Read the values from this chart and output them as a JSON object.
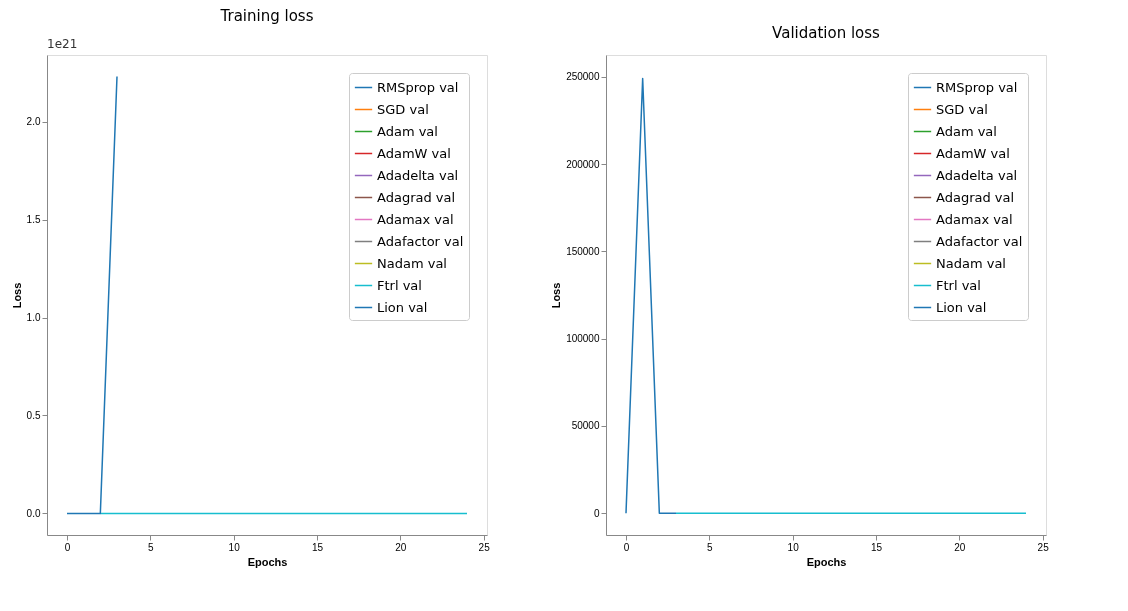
{
  "chart_data": [
    {
      "type": "line",
      "title": "Training loss",
      "xlabel": "Epochs",
      "ylabel": "Loss",
      "annotations": [
        "1e21"
      ],
      "x": [
        0,
        1,
        2,
        3,
        4,
        5,
        6,
        7,
        8,
        9,
        10,
        11,
        12,
        13,
        14,
        15,
        16,
        17,
        18,
        19,
        20,
        21,
        22,
        23,
        24
      ],
      "xlim": [
        -1.2,
        25.2
      ],
      "xticks": [
        0,
        5,
        10,
        15,
        20,
        25
      ],
      "ylim": [
        -0.11,
        2.34
      ],
      "yticks": [
        {
          "value": 0,
          "label": "0.0"
        },
        {
          "value": 0.5,
          "label": "0.5"
        },
        {
          "value": 1,
          "label": "1.0"
        },
        {
          "value": 1.5,
          "label": "1.5"
        },
        {
          "value": 2,
          "label": "2.0"
        }
      ],
      "legend": "top right",
      "grid": false,
      "series": [
        {
          "name": "RMSprop val",
          "color": "#1f77b4",
          "values": [
            0,
            0,
            0,
            2.23,
            null,
            null,
            null,
            null,
            null,
            null,
            null,
            null,
            null,
            null,
            null,
            null,
            null,
            null,
            null,
            null,
            null,
            null,
            null,
            null,
            null
          ]
        },
        {
          "name": "SGD val",
          "color": "#ff7f0e",
          "values": [
            null,
            null,
            null,
            null,
            null,
            null,
            null,
            null,
            null,
            null,
            null,
            null,
            null,
            null,
            null,
            null,
            null,
            null,
            null,
            null,
            null,
            null,
            null,
            null,
            null
          ]
        },
        {
          "name": "Adam val",
          "color": "#2ca02c",
          "values": [
            null,
            null,
            null,
            null,
            null,
            null,
            null,
            null,
            null,
            null,
            null,
            null,
            null,
            null,
            null,
            null,
            null,
            null,
            null,
            null,
            null,
            null,
            null,
            null,
            null
          ]
        },
        {
          "name": "AdamW val",
          "color": "#d62728",
          "values": [
            null,
            null,
            null,
            null,
            null,
            null,
            null,
            null,
            null,
            null,
            null,
            null,
            null,
            null,
            null,
            null,
            null,
            null,
            null,
            null,
            null,
            null,
            null,
            null,
            null
          ]
        },
        {
          "name": "Adadelta val",
          "color": "#9467bd",
          "values": [
            null,
            null,
            null,
            null,
            null,
            null,
            null,
            null,
            null,
            null,
            null,
            null,
            null,
            null,
            null,
            null,
            null,
            null,
            null,
            null,
            null,
            null,
            null,
            null,
            null
          ]
        },
        {
          "name": "Adagrad val",
          "color": "#8c564b",
          "values": [
            null,
            null,
            null,
            null,
            null,
            null,
            null,
            null,
            null,
            null,
            null,
            null,
            null,
            null,
            null,
            null,
            null,
            null,
            null,
            null,
            null,
            null,
            null,
            null,
            null
          ]
        },
        {
          "name": "Adamax val",
          "color": "#e377c2",
          "values": [
            null,
            null,
            null,
            null,
            null,
            null,
            null,
            null,
            null,
            null,
            null,
            null,
            null,
            null,
            null,
            null,
            null,
            null,
            null,
            null,
            null,
            null,
            null,
            null,
            null
          ]
        },
        {
          "name": "Adafactor val",
          "color": "#7f7f7f",
          "values": [
            null,
            null,
            null,
            null,
            null,
            null,
            null,
            null,
            null,
            null,
            null,
            null,
            null,
            null,
            null,
            null,
            null,
            null,
            null,
            null,
            null,
            null,
            null,
            null,
            null
          ]
        },
        {
          "name": "Nadam val",
          "color": "#bcbd22",
          "values": [
            null,
            null,
            null,
            null,
            null,
            null,
            null,
            null,
            null,
            null,
            null,
            null,
            null,
            null,
            null,
            null,
            null,
            null,
            null,
            null,
            null,
            null,
            null,
            null,
            null
          ]
        },
        {
          "name": "Ftrl val",
          "color": "#17becf",
          "values": [
            null,
            null,
            0,
            0,
            0,
            0,
            0,
            0,
            0,
            0,
            0,
            0,
            0,
            0,
            0,
            0,
            0,
            0,
            0,
            0,
            0,
            0,
            0,
            0,
            0
          ]
        },
        {
          "name": "Lion val",
          "color": "#1f77b4",
          "values": [
            null,
            null,
            null,
            null,
            null,
            null,
            null,
            null,
            null,
            null,
            null,
            null,
            null,
            null,
            null,
            null,
            null,
            null,
            null,
            null,
            null,
            null,
            null,
            null,
            null
          ]
        }
      ]
    },
    {
      "type": "line",
      "title": "Validation loss",
      "xlabel": "Epochs",
      "ylabel": "Loss",
      "x": [
        0,
        1,
        2,
        3,
        4,
        5,
        6,
        7,
        8,
        9,
        10,
        11,
        12,
        13,
        14,
        15,
        16,
        17,
        18,
        19,
        20,
        21,
        22,
        23,
        24
      ],
      "xlim": [
        -1.2,
        25.2
      ],
      "xticks": [
        0,
        5,
        10,
        15,
        20,
        25
      ],
      "ylim": [
        -12500,
        262500
      ],
      "yticks": [
        0,
        50000,
        100000,
        150000,
        200000,
        250000
      ],
      "legend": "top right",
      "grid": false,
      "series": [
        {
          "name": "RMSprop val",
          "color": "#1f77b4",
          "values": [
            0,
            249000,
            0,
            0,
            null,
            null,
            null,
            null,
            null,
            null,
            null,
            null,
            null,
            null,
            null,
            null,
            null,
            null,
            null,
            null,
            null,
            null,
            null,
            null,
            null
          ]
        },
        {
          "name": "SGD val",
          "color": "#ff7f0e",
          "values": [
            null,
            null,
            null,
            null,
            null,
            null,
            null,
            null,
            null,
            null,
            null,
            null,
            null,
            null,
            null,
            null,
            null,
            null,
            null,
            null,
            null,
            null,
            null,
            null,
            null
          ]
        },
        {
          "name": "Adam val",
          "color": "#2ca02c",
          "values": [
            null,
            null,
            null,
            null,
            null,
            null,
            null,
            null,
            null,
            null,
            null,
            null,
            null,
            null,
            null,
            null,
            null,
            null,
            null,
            null,
            null,
            null,
            null,
            null,
            null
          ]
        },
        {
          "name": "AdamW val",
          "color": "#d62728",
          "values": [
            null,
            null,
            null,
            null,
            null,
            null,
            null,
            null,
            null,
            null,
            null,
            null,
            null,
            null,
            null,
            null,
            null,
            null,
            null,
            null,
            null,
            null,
            null,
            null,
            null
          ]
        },
        {
          "name": "Adadelta val",
          "color": "#9467bd",
          "values": [
            null,
            null,
            null,
            null,
            null,
            null,
            null,
            null,
            null,
            null,
            null,
            null,
            null,
            null,
            null,
            null,
            null,
            null,
            null,
            null,
            null,
            null,
            null,
            null,
            null
          ]
        },
        {
          "name": "Adagrad val",
          "color": "#8c564b",
          "values": [
            null,
            null,
            null,
            null,
            null,
            null,
            null,
            null,
            null,
            null,
            null,
            null,
            null,
            null,
            null,
            null,
            null,
            null,
            null,
            null,
            null,
            null,
            null,
            null,
            null
          ]
        },
        {
          "name": "Adamax val",
          "color": "#e377c2",
          "values": [
            null,
            null,
            null,
            null,
            null,
            null,
            null,
            null,
            null,
            null,
            null,
            null,
            null,
            null,
            null,
            null,
            null,
            null,
            null,
            null,
            null,
            null,
            null,
            null,
            null
          ]
        },
        {
          "name": "Adafactor val",
          "color": "#7f7f7f",
          "values": [
            null,
            null,
            null,
            null,
            null,
            null,
            null,
            null,
            null,
            null,
            null,
            null,
            null,
            null,
            null,
            null,
            null,
            null,
            null,
            null,
            null,
            null,
            null,
            null,
            null
          ]
        },
        {
          "name": "Nadam val",
          "color": "#bcbd22",
          "values": [
            null,
            null,
            null,
            null,
            null,
            null,
            null,
            null,
            null,
            null,
            null,
            null,
            null,
            null,
            null,
            null,
            null,
            null,
            null,
            null,
            null,
            null,
            null,
            null,
            null
          ]
        },
        {
          "name": "Ftrl val",
          "color": "#17becf",
          "values": [
            null,
            null,
            null,
            0,
            0,
            0,
            0,
            0,
            0,
            0,
            0,
            0,
            0,
            0,
            0,
            0,
            0,
            0,
            0,
            0,
            0,
            0,
            0,
            0,
            0
          ]
        },
        {
          "name": "Lion val",
          "color": "#1f77b4",
          "values": [
            null,
            null,
            null,
            null,
            null,
            null,
            null,
            null,
            null,
            null,
            null,
            null,
            null,
            null,
            null,
            null,
            null,
            null,
            null,
            null,
            null,
            null,
            null,
            null,
            null
          ]
        }
      ]
    }
  ]
}
